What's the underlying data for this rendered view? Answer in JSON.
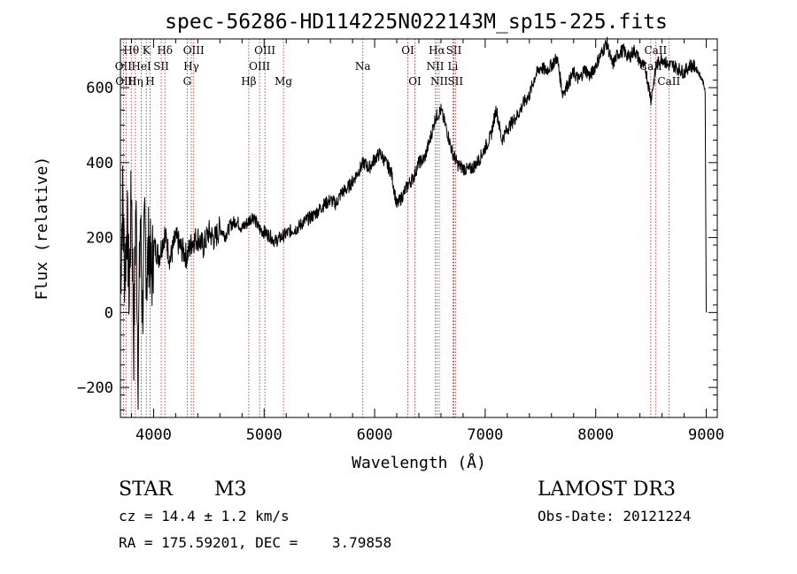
{
  "chart_data": {
    "type": "line",
    "title": "spec-56286-HD114225N022143M_sp15-225.fits",
    "xlabel": "Wavelength (Å)",
    "ylabel": "Flux (relative)",
    "xlim": [
      3700,
      9100
    ],
    "ylim": [
      -280,
      730
    ],
    "x_ticks": [
      4000,
      5000,
      6000,
      7000,
      8000,
      9000
    ],
    "x_tick_labels": [
      "4000",
      "5000",
      "6000",
      "7000",
      "8000",
      "9000"
    ],
    "y_ticks": [
      -200,
      0,
      200,
      400,
      600
    ],
    "y_tick_labels": [
      "−200",
      "0",
      "200",
      "400",
      "600"
    ],
    "series": [
      {
        "name": "spectrum",
        "x": [
          3700,
          3720,
          3740,
          3760,
          3780,
          3800,
          3820,
          3840,
          3860,
          3880,
          3900,
          3920,
          3940,
          3960,
          3980,
          4000,
          4050,
          4100,
          4150,
          4200,
          4250,
          4300,
          4350,
          4400,
          4450,
          4500,
          4550,
          4600,
          4650,
          4700,
          4750,
          4800,
          4850,
          4900,
          4950,
          5000,
          5050,
          5100,
          5150,
          5200,
          5250,
          5300,
          5350,
          5400,
          5450,
          5500,
          5550,
          5600,
          5650,
          5700,
          5750,
          5800,
          5850,
          5900,
          5950,
          6000,
          6050,
          6100,
          6150,
          6200,
          6250,
          6300,
          6350,
          6400,
          6450,
          6500,
          6550,
          6600,
          6650,
          6700,
          6750,
          6800,
          6850,
          6900,
          6950,
          7000,
          7050,
          7100,
          7150,
          7200,
          7250,
          7300,
          7350,
          7400,
          7450,
          7500,
          7550,
          7600,
          7650,
          7700,
          7750,
          7800,
          7850,
          7900,
          7950,
          8000,
          8050,
          8100,
          8150,
          8200,
          8250,
          8300,
          8350,
          8400,
          8450,
          8500,
          8550,
          8600,
          8650,
          8700,
          8750,
          8800,
          8850,
          8900,
          8950,
          8980,
          8990,
          9000
        ],
        "y": [
          80,
          300,
          100,
          250,
          40,
          350,
          -80,
          300,
          -150,
          250,
          0,
          220,
          100,
          200,
          80,
          180,
          150,
          210,
          140,
          200,
          170,
          150,
          190,
          200,
          175,
          215,
          195,
          225,
          205,
          235,
          245,
          225,
          240,
          260,
          225,
          215,
          205,
          190,
          200,
          210,
          220,
          225,
          240,
          250,
          260,
          275,
          290,
          300,
          290,
          320,
          330,
          350,
          375,
          400,
          385,
          410,
          425,
          400,
          375,
          285,
          310,
          340,
          360,
          400,
          410,
          460,
          520,
          540,
          490,
          430,
          395,
          385,
          380,
          390,
          410,
          440,
          470,
          545,
          460,
          490,
          510,
          530,
          560,
          580,
          630,
          655,
          645,
          660,
          680,
          585,
          610,
          640,
          620,
          650,
          630,
          660,
          690,
          720,
          660,
          690,
          700,
          680,
          700,
          670,
          650,
          570,
          660,
          680,
          660,
          660,
          650,
          640,
          660,
          655,
          630,
          610,
          580,
          0
        ]
      }
    ],
    "line_markers": [
      {
        "label": "Hθ",
        "x": 3798,
        "row": 0
      },
      {
        "label": "OII",
        "x": 3727,
        "row": 1
      },
      {
        "label": "OIII",
        "x": 3750,
        "row": 2
      },
      {
        "label": "Hη",
        "x": 3835,
        "row": 2
      },
      {
        "label": "K",
        "x": 3934,
        "row": 0
      },
      {
        "label": "HeI",
        "x": 3889,
        "row": 1
      },
      {
        "label": "H",
        "x": 3968,
        "row": 2
      },
      {
        "label": "Hδ",
        "x": 4102,
        "row": 0
      },
      {
        "label": "SII",
        "x": 4069,
        "row": 1
      },
      {
        "label": "OIII",
        "x": 4363,
        "row": 0
      },
      {
        "label": "Hγ",
        "x": 4341,
        "row": 1
      },
      {
        "label": "G",
        "x": 4304,
        "row": 2
      },
      {
        "label": "OIII",
        "x": 5007,
        "row": 0
      },
      {
        "label": "OIII",
        "x": 4959,
        "row": 1
      },
      {
        "label": "Hβ",
        "x": 4861,
        "row": 2
      },
      {
        "label": "Mg",
        "x": 5175,
        "row": 2
      },
      {
        "label": "Na",
        "x": 5893,
        "row": 1
      },
      {
        "label": "OI",
        "x": 6300,
        "row": 0
      },
      {
        "label": "OI",
        "x": 6364,
        "row": 2
      },
      {
        "label": "Hα",
        "x": 6563,
        "row": 0
      },
      {
        "label": "NII",
        "x": 6548,
        "row": 1
      },
      {
        "label": "NII",
        "x": 6584,
        "row": 2
      },
      {
        "label": "SII",
        "x": 6717,
        "row": 0
      },
      {
        "label": "Li",
        "x": 6708,
        "row": 1
      },
      {
        "label": "SII",
        "x": 6731,
        "row": 2
      },
      {
        "label": "CaII",
        "x": 8542,
        "row": 0
      },
      {
        "label": "CaII",
        "x": 8498,
        "row": 1
      },
      {
        "label": "CaII",
        "x": 8662,
        "row": 2
      }
    ]
  },
  "info": {
    "object_class": "STAR",
    "subclass": "M3",
    "survey": "LAMOST DR3",
    "redshift": "cz = 14.4 ± 1.2 km/s",
    "obs_date": "Obs-Date: 20121224",
    "coords": "RA = 175.59201, DEC =    3.79858"
  }
}
